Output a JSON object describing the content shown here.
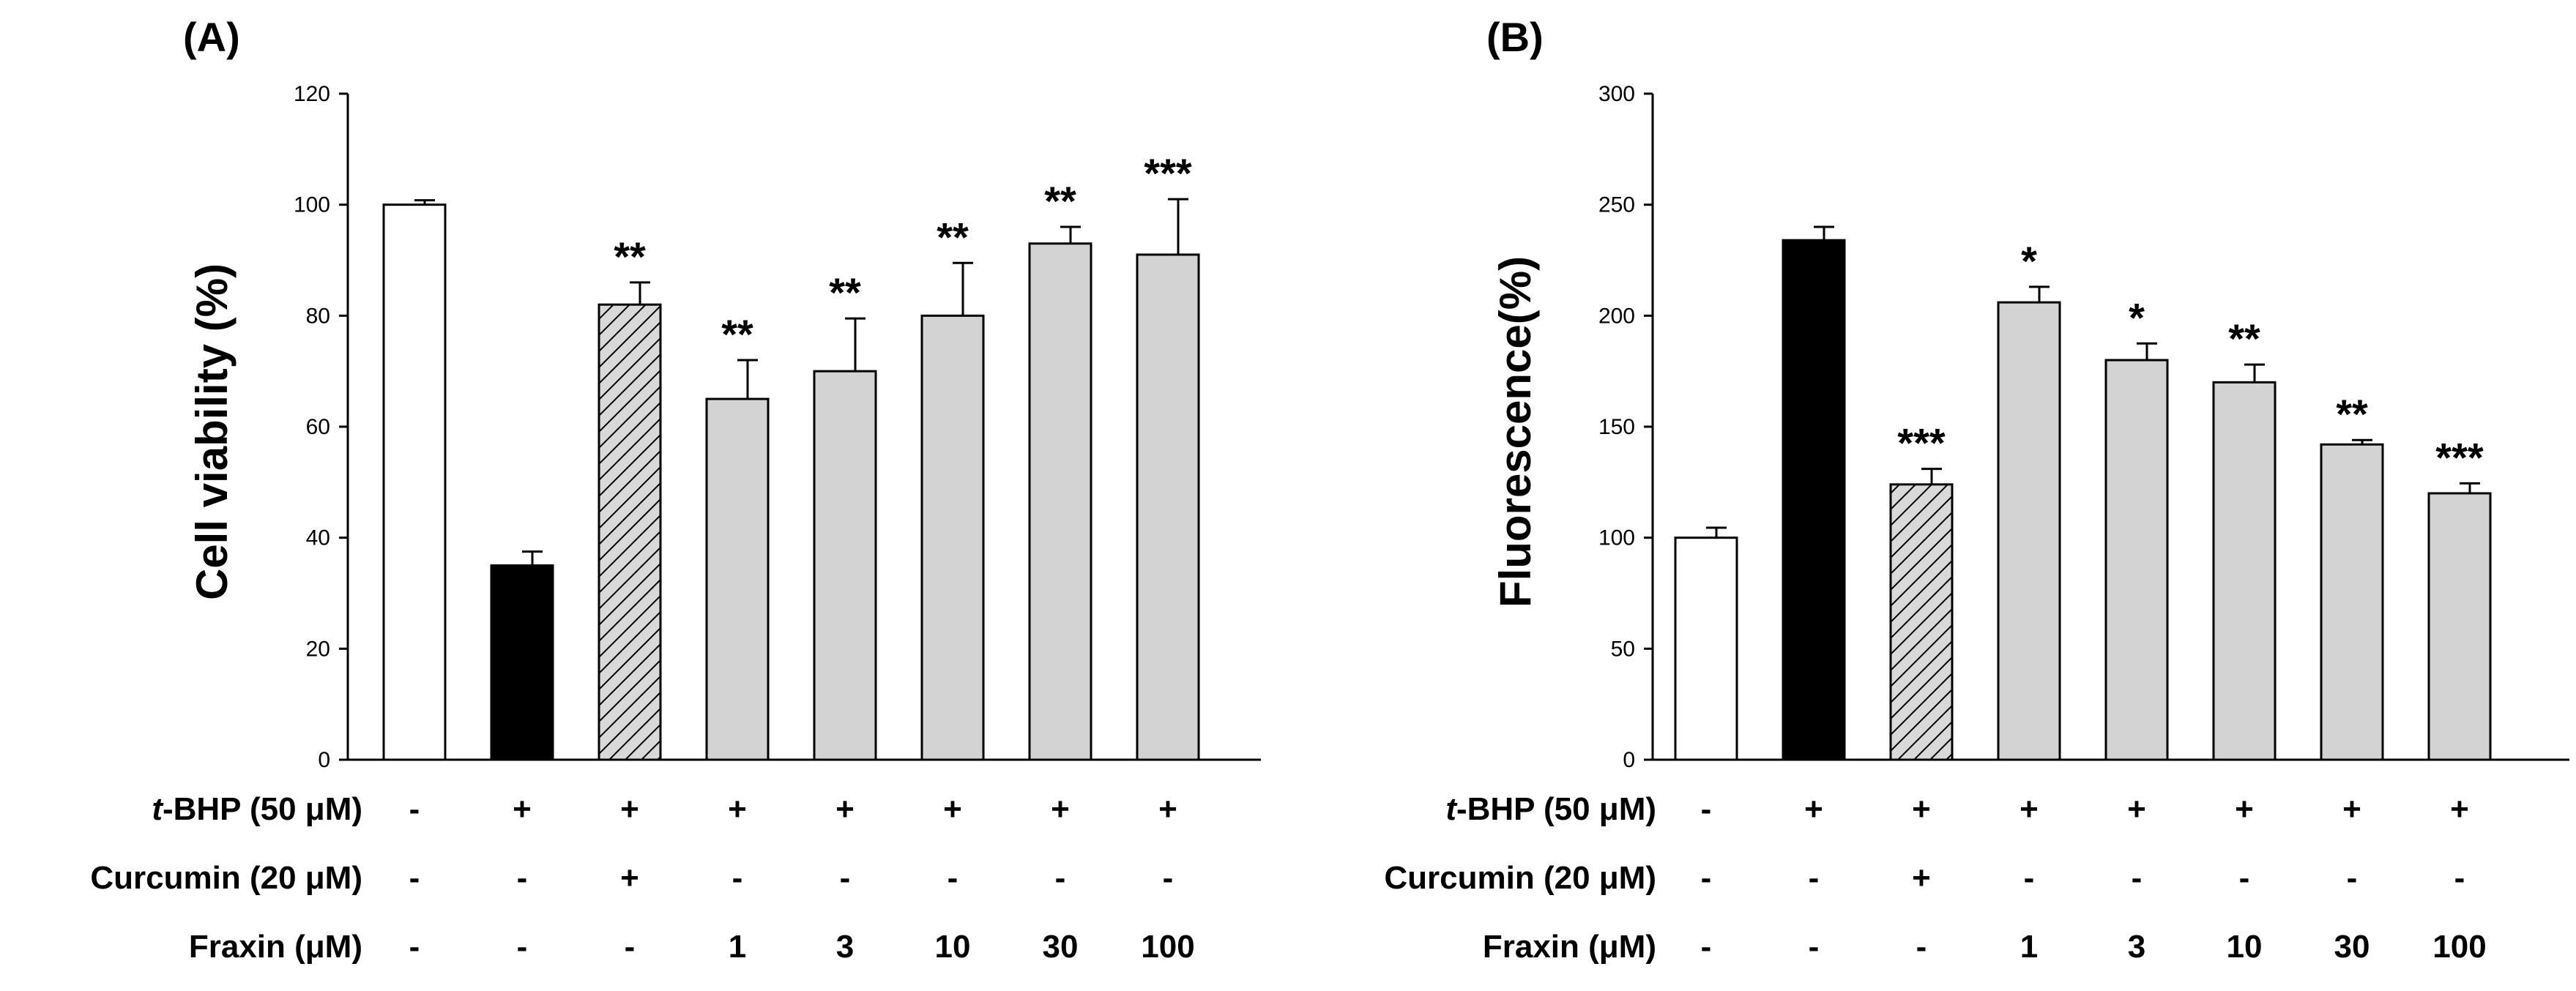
{
  "colors": {
    "control": "#ffffff",
    "tbhp": "#000000",
    "curcumin": "#d9d9d9",
    "fraxin": "#d3d3d3",
    "stroke": "#000000"
  },
  "chart_data": [
    {
      "type": "bar",
      "panel": "(A)",
      "ylabel": "Cell viability (%)",
      "ylim": [
        0,
        120
      ],
      "yticks": [
        "0",
        "20",
        "40",
        "60",
        "80",
        "100",
        "120"
      ],
      "values": [
        100,
        35,
        82,
        65,
        70,
        80,
        93,
        91
      ],
      "errors": [
        0.8,
        2.5,
        4,
        7,
        9.5,
        9.5,
        3,
        10
      ],
      "fills": [
        "control",
        "tbhp",
        "curcumin",
        "fraxin",
        "fraxin",
        "fraxin",
        "fraxin",
        "fraxin"
      ],
      "hatched": [
        false,
        false,
        true,
        false,
        false,
        false,
        false,
        false
      ],
      "significance": [
        "",
        "",
        "**",
        "**",
        "**",
        "**",
        "**",
        "***"
      ],
      "conditions": [
        {
          "label_prefix": "t",
          "label_rest": "-BHP  (50  μM)",
          "cells": [
            "-",
            "+",
            "+",
            "+",
            "+",
            "+",
            "+",
            "+"
          ]
        },
        {
          "label_prefix": "",
          "label_rest": "Curcumin  (20  μM)",
          "cells": [
            "-",
            "-",
            "+",
            "-",
            "-",
            "-",
            "-",
            "-"
          ]
        },
        {
          "label_prefix": "",
          "label_rest": "Fraxin  (μM)",
          "cells": [
            "-",
            "-",
            "-",
            "1",
            "3",
            "10",
            "30",
            "100"
          ]
        }
      ]
    },
    {
      "type": "bar",
      "panel": "(B)",
      "ylabel": "Fluorescence(%)",
      "ylim": [
        0,
        300
      ],
      "yticks": [
        "0",
        "50",
        "100",
        "150",
        "200",
        "250",
        "300"
      ],
      "values": [
        100,
        234,
        124,
        206,
        180,
        170,
        142,
        120
      ],
      "errors": [
        4.5,
        6,
        7,
        7,
        7.5,
        8,
        2,
        4.5
      ],
      "fills": [
        "control",
        "tbhp",
        "curcumin",
        "fraxin",
        "fraxin",
        "fraxin",
        "fraxin",
        "fraxin"
      ],
      "hatched": [
        false,
        false,
        true,
        false,
        false,
        false,
        false,
        false
      ],
      "significance": [
        "",
        "",
        "***",
        "*",
        "*",
        "**",
        "**",
        "***"
      ],
      "conditions": [
        {
          "label_prefix": "t",
          "label_rest": "-BHP  (50  μM)",
          "cells": [
            "-",
            "+",
            "+",
            "+",
            "+",
            "+",
            "+",
            "+"
          ]
        },
        {
          "label_prefix": "",
          "label_rest": "Curcumin  (20  μM)",
          "cells": [
            "-",
            "-",
            "+",
            "-",
            "-",
            "-",
            "-",
            "-"
          ]
        },
        {
          "label_prefix": "",
          "label_rest": "Fraxin  (μM)",
          "cells": [
            "-",
            "-",
            "-",
            "1",
            "3",
            "10",
            "30",
            "100"
          ]
        }
      ]
    }
  ]
}
